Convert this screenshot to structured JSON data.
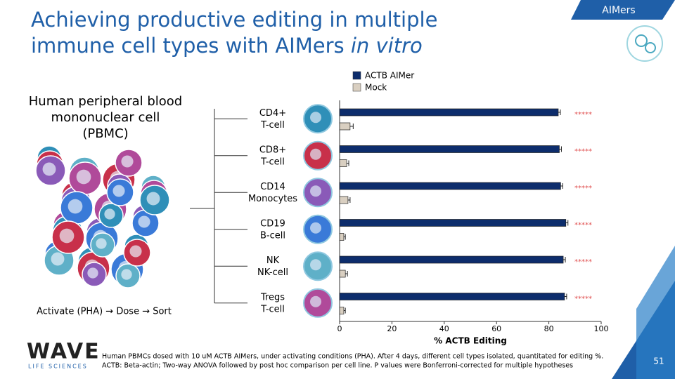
{
  "header": {
    "title_main": "Achieving productive editing in multiple immune cell types with AIMers",
    "title_italic": "in vitro",
    "tag": "AIMers"
  },
  "left_panel": {
    "label": [
      "Human peripheral blood",
      "mononuclear cell",
      "(PBMC)"
    ],
    "workflow": "Activate (PHA) → Dose → Sort"
  },
  "footer": {
    "logo": "WAVE",
    "logo_sub": "LIFE SCIENCES",
    "notes": [
      "Human PBMCs dosed with 10 uM ACTB AIMers, under activating conditions (PHA). After 4 days, different cell types isolated, quantitated for editing %.",
      "ACTB: Beta-actin; Two-way ANOVA followed by post hoc comparison per cell line. P values were Bonferroni-corrected for multiple hypotheses"
    ],
    "page": "51"
  },
  "chart_data": {
    "type": "bar",
    "orientation": "horizontal",
    "categories": [
      "CD4+",
      "CD8+",
      "CD14",
      "CD19",
      "NK",
      "Tregs"
    ],
    "cell_types": [
      "T-cell",
      "T-cell",
      "Monocytes",
      "B-cell",
      "NK-cell",
      "T-cell"
    ],
    "series": [
      {
        "name": "ACTB AIMer",
        "color": "#0d2d6c",
        "values": [
          83.6,
          84,
          84.5,
          86.5,
          85.5,
          86
        ],
        "errors": [
          0.8,
          0.8,
          0.8,
          0.8,
          0.8,
          0.8
        ]
      },
      {
        "name": "Mock",
        "color": "#d9cfc1",
        "values": [
          4,
          2.7,
          3.2,
          1.6,
          2.2,
          1.6
        ],
        "errors": [
          1.2,
          0.8,
          0.8,
          0.6,
          0.8,
          0.6
        ]
      }
    ],
    "significance": [
      "*****",
      "*****",
      "*****",
      "*****",
      "*****",
      "*****"
    ],
    "xlabel": "% ACTB Editing",
    "xlim": [
      0,
      100
    ],
    "xticks": [
      0,
      20,
      40,
      60,
      80,
      100
    ],
    "grid": false
  }
}
